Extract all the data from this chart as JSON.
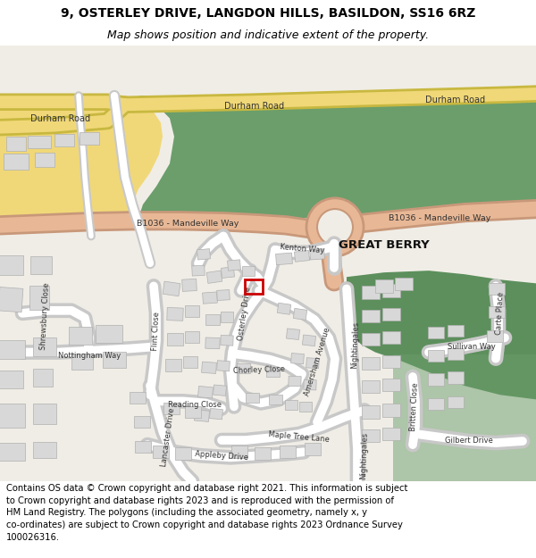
{
  "title_line1": "9, OSTERLEY DRIVE, LANGDON HILLS, BASILDON, SS16 6RZ",
  "title_line2": "Map shows position and indicative extent of the property.",
  "footer_text": "Contains OS data © Crown copyright and database right 2021. This information is subject to Crown copyright and database rights 2023 and is reproduced with the permission of\nHM Land Registry. The polygons (including the associated geometry, namely x, y\nco-ordinates) are subject to Crown copyright and database rights 2023 Ordnance Survey\n100026316.",
  "bg_color": "#ffffff",
  "map_bg": "#f0ede6",
  "green1": "#6b9e6b",
  "green2": "#5c8f5c",
  "road_durham": "#f0d878",
  "road_b1036": "#e8b896",
  "road_white": "#ffffff",
  "road_edge": "#c8c8c8",
  "building_fill": "#d8d8d8",
  "building_edge": "#b0b0b0",
  "highlight": "#cc0000",
  "title_fs": 10,
  "subtitle_fs": 9,
  "footer_fs": 7.2,
  "label_fs": 6.5,
  "small_label_fs": 6.0
}
